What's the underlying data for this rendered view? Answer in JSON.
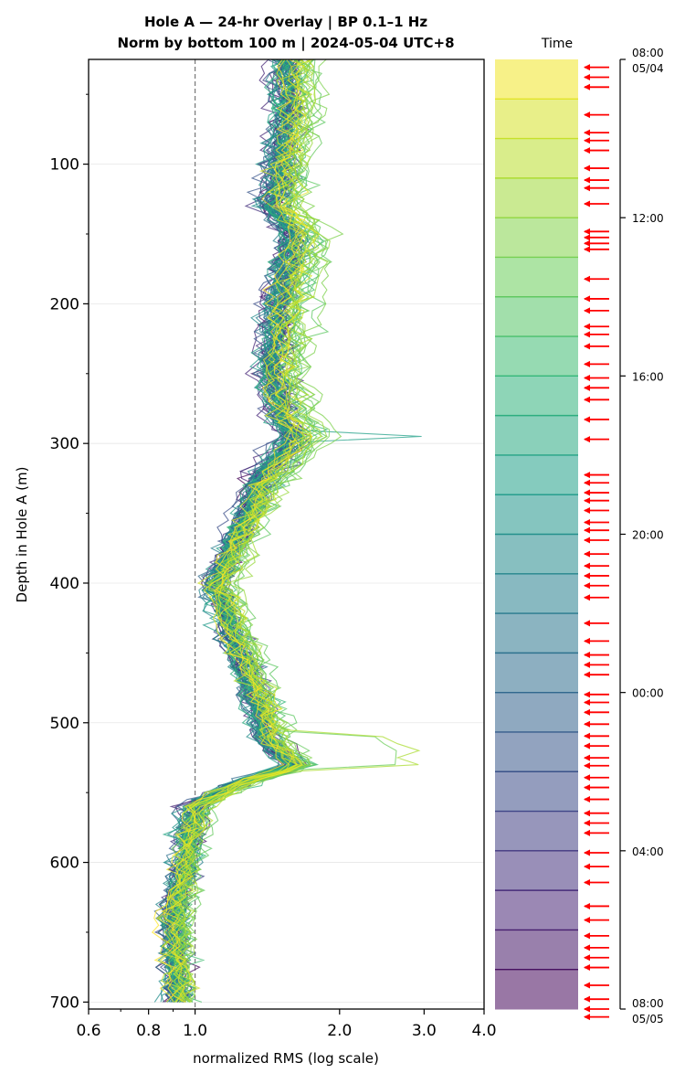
{
  "chart_data": {
    "type": "line",
    "title_line1": "Hole A — 24-hr Overlay  |  BP 0.1–1 Hz",
    "title_line2": "Norm by bottom 100 m  |  2024-05-04 UTC+8",
    "xlabel": "normalized RMS  (log scale)",
    "ylabel": "Depth in Hole A (m)",
    "x_scale": "log",
    "xlim": [
      0.6,
      4.0
    ],
    "ylim": [
      705,
      25
    ],
    "x_ticks": [
      {
        "value": 0.6,
        "label": "0.6"
      },
      {
        "value": 0.8,
        "label": "0.8"
      },
      {
        "value": 1.0,
        "label": "1.0"
      },
      {
        "value": 2.0,
        "label": "2.0"
      },
      {
        "value": 3.0,
        "label": "3.0"
      },
      {
        "value": 4.0,
        "label": "4.0"
      }
    ],
    "y_ticks": [
      {
        "value": 100,
        "label": "100"
      },
      {
        "value": 200,
        "label": "200"
      },
      {
        "value": 300,
        "label": "300"
      },
      {
        "value": 400,
        "label": "400"
      },
      {
        "value": 500,
        "label": "500"
      },
      {
        "value": 600,
        "label": "600"
      },
      {
        "value": 700,
        "label": "700"
      }
    ],
    "reference_line_x": 1.0,
    "grid": "horizontal",
    "depth_start": 25,
    "depth_end": 700,
    "depth_step": 5,
    "num_traces": 72,
    "median_profile": [
      {
        "depth": 25,
        "value": 1.55
      },
      {
        "depth": 60,
        "value": 1.55
      },
      {
        "depth": 100,
        "value": 1.5
      },
      {
        "depth": 130,
        "value": 1.45
      },
      {
        "depth": 150,
        "value": 1.6
      },
      {
        "depth": 200,
        "value": 1.5
      },
      {
        "depth": 250,
        "value": 1.45
      },
      {
        "depth": 280,
        "value": 1.5
      },
      {
        "depth": 295,
        "value": 1.6
      },
      {
        "depth": 320,
        "value": 1.4
      },
      {
        "depth": 360,
        "value": 1.25
      },
      {
        "depth": 400,
        "value": 1.1
      },
      {
        "depth": 440,
        "value": 1.2
      },
      {
        "depth": 470,
        "value": 1.3
      },
      {
        "depth": 510,
        "value": 1.4
      },
      {
        "depth": 530,
        "value": 1.6
      },
      {
        "depth": 545,
        "value": 1.2
      },
      {
        "depth": 560,
        "value": 1.0
      },
      {
        "depth": 600,
        "value": 0.95
      },
      {
        "depth": 640,
        "value": 0.9
      },
      {
        "depth": 700,
        "value": 0.92
      }
    ],
    "colorbar": {
      "title": "Time",
      "colormap": "viridis",
      "start_label_top": "08:00",
      "start_label_bottom": "05/04",
      "end_label_top": "08:00",
      "end_label_bottom": "05/05",
      "ticks": [
        "12:00",
        "16:00",
        "20:00",
        "00:00",
        "04:00"
      ],
      "marker_color": "#ff0000",
      "hours": [
        0.2,
        0.45,
        0.7,
        1.4,
        1.85,
        2.05,
        2.3,
        2.75,
        3.05,
        3.25,
        3.65,
        4.35,
        4.5,
        4.65,
        4.8,
        5.55,
        6.05,
        6.35,
        6.75,
        6.95,
        7.25,
        7.7,
        8.05,
        8.3,
        8.6,
        9.1,
        9.6,
        10.5,
        10.7,
        10.95,
        11.15,
        11.4,
        11.7,
        11.9,
        12.15,
        12.5,
        12.8,
        13.05,
        13.3,
        13.6,
        14.25,
        14.7,
        15.05,
        15.3,
        15.55,
        16.05,
        16.25,
        16.5,
        16.8,
        17.1,
        17.35,
        17.65,
        17.85,
        18.15,
        18.4,
        18.7,
        19.05,
        19.3,
        19.55,
        20.05,
        20.4,
        20.8,
        21.4,
        21.75,
        22.15,
        22.45,
        22.7,
        22.95,
        23.4,
        23.75,
        24.0,
        24.2
      ]
    }
  }
}
